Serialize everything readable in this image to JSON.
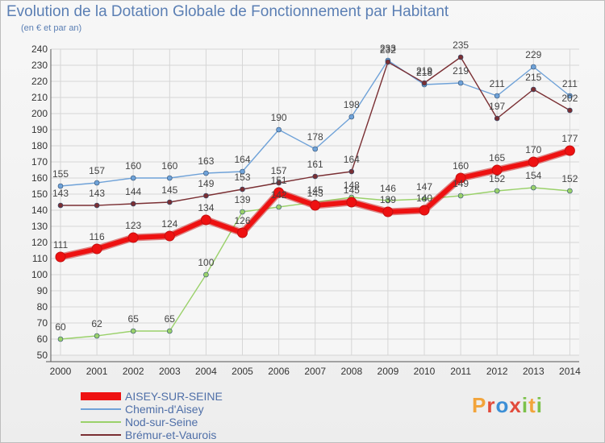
{
  "title": "Evolution de la Dotation Globale de Fonctionnement par Habitant",
  "subtitle": "(en € et par an)",
  "logo": {
    "letters": [
      "P",
      "r",
      "o",
      "x",
      "i",
      "t",
      "i"
    ],
    "colors": [
      "#f2a43b",
      "#e24b3b",
      "#3c8fd6",
      "#e24b3b",
      "#7cc14a",
      "#f2a43b",
      "#7cc14a"
    ]
  },
  "chart_data": {
    "type": "line",
    "x": [
      "2000",
      "2001",
      "2002",
      "2003",
      "2004",
      "2005",
      "2006",
      "2007",
      "2008",
      "2009",
      "2010",
      "2011",
      "2012",
      "2013",
      "2014"
    ],
    "ylim": [
      50,
      240
    ],
    "yticks": [
      50,
      60,
      70,
      80,
      90,
      100,
      110,
      120,
      130,
      140,
      150,
      160,
      170,
      180,
      190,
      200,
      210,
      220,
      230,
      240
    ],
    "grid": true,
    "legend_position": "bottom-left",
    "series": [
      {
        "name": "AISEY-SUR-SEINE",
        "color": "#ee1111",
        "values": [
          111,
          116,
          123,
          124,
          134,
          126,
          151,
          143,
          145,
          139,
          140,
          160,
          165,
          170,
          177
        ]
      },
      {
        "name": "Chemin-d'Aisey",
        "color": "#6fa2d8",
        "values": [
          155,
          157,
          160,
          160,
          163,
          164,
          190,
          178,
          198,
          233,
          218,
          219,
          211,
          229,
          211
        ]
      },
      {
        "name": "Nod-sur-Seine",
        "color": "#9ad16a",
        "values": [
          60,
          62,
          65,
          65,
          100,
          139,
          142,
          145,
          148,
          146,
          147,
          149,
          152,
          154,
          152
        ]
      },
      {
        "name": "Brémur-et-Vaurois",
        "color": "#7a2f33",
        "values": [
          143,
          143,
          144,
          145,
          149,
          153,
          157,
          161,
          164,
          232,
          219,
          235,
          197,
          215,
          202
        ]
      }
    ]
  }
}
